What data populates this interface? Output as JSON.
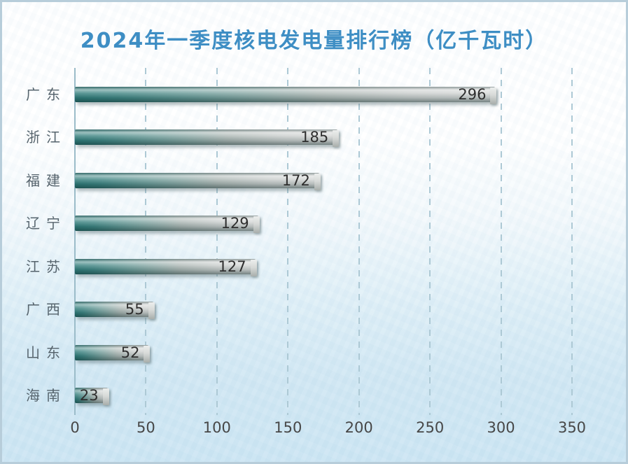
{
  "title": "2024年一季度核电发电量排行榜（亿千瓦时）",
  "colors": {
    "title_text": "#3e8ec4",
    "bar_teal_start": "#2c7a78",
    "bar_silver_end": "#d5d7d6",
    "grid_dash": "#adc9d5",
    "axis_line": "#9bbcc9",
    "category_label": "#56646d",
    "tick_label": "#474747",
    "value_label": "#2e2e2e",
    "background_top": "#ffffff",
    "background_bottom": "#cbe5f3",
    "frame_border": "#b7cdda"
  },
  "chart_data": {
    "type": "bar",
    "orientation": "horizontal",
    "title": "2024年一季度核电发电量排行榜（亿千瓦时）",
    "categories": [
      "广东",
      "浙江",
      "福建",
      "辽宁",
      "江苏",
      "广西",
      "山东",
      "海南"
    ],
    "values": [
      296,
      185,
      172,
      129,
      127,
      55,
      52,
      23
    ],
    "value_labels": [
      "296",
      "185",
      "172",
      "129",
      "127",
      "55",
      "52",
      "23"
    ],
    "xlabel": "",
    "ylabel": "",
    "xlim": [
      0,
      350
    ],
    "x_ticks": [
      0,
      50,
      100,
      150,
      200,
      250,
      300,
      350
    ],
    "grid": "vertical-dashed",
    "legend_position": "none"
  }
}
